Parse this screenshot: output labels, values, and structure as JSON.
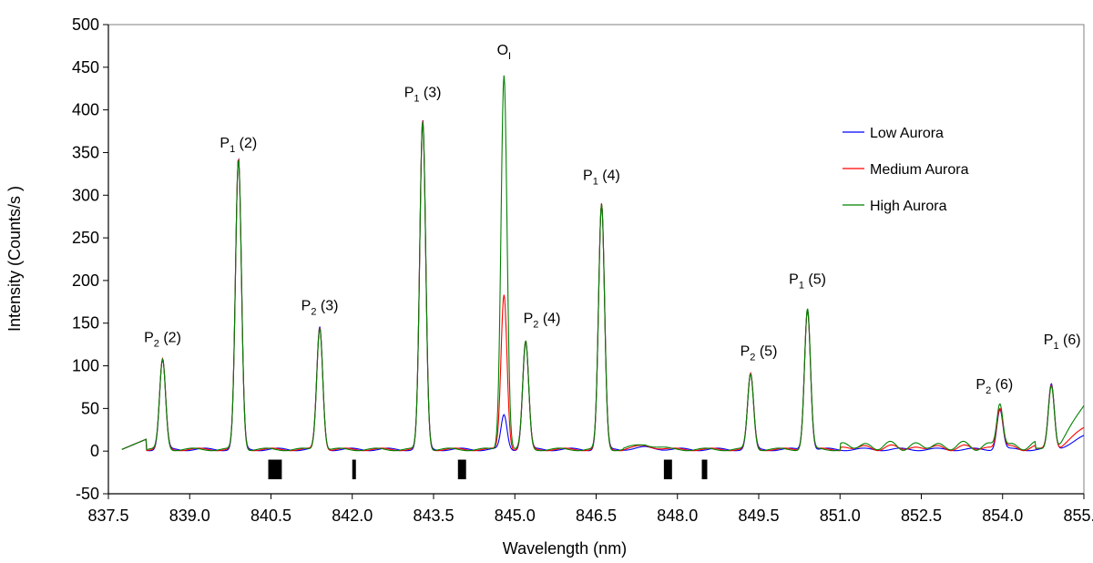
{
  "chart_data": {
    "type": "line",
    "xlabel": "Wavelength (nm)",
    "ylabel": "Intensity (Counts/s )",
    "xlim": [
      837.5,
      855.5
    ],
    "ylim": [
      -50,
      500
    ],
    "xticks": [
      837.5,
      839.0,
      840.5,
      842.0,
      843.5,
      845.0,
      846.5,
      848.0,
      849.5,
      851.0,
      852.5,
      854.0,
      855.5
    ],
    "xtick_labels": [
      "837.5",
      "839.0",
      "840.5",
      "842.0",
      "843.5",
      "845.0",
      "846.5",
      "848.0",
      "849.5",
      "851.0",
      "852.5",
      "854.0",
      "855.5"
    ],
    "yticks": [
      -50,
      0,
      50,
      100,
      150,
      200,
      250,
      300,
      350,
      400,
      450,
      500
    ],
    "ytick_labels": [
      "-50",
      "0",
      "50",
      "100",
      "150",
      "200",
      "250",
      "300",
      "350",
      "400",
      "450",
      "500"
    ],
    "grid": false,
    "legend_position": "right",
    "series": [
      {
        "name": "Low Aurora",
        "color": "#0000ff",
        "peaks": [
          [
            838.5,
            105
          ],
          [
            839.9,
            340
          ],
          [
            841.4,
            143
          ],
          [
            843.3,
            385
          ],
          [
            844.8,
            40
          ],
          [
            845.2,
            126
          ],
          [
            846.6,
            287
          ],
          [
            849.35,
            88
          ],
          [
            850.4,
            165
          ],
          [
            853.95,
            47
          ],
          [
            854.9,
            76
          ]
        ],
        "tail": 15
      },
      {
        "name": "Medium Aurora",
        "color": "#ff0000",
        "peaks": [
          [
            838.5,
            105
          ],
          [
            839.9,
            340
          ],
          [
            841.4,
            143
          ],
          [
            843.3,
            385
          ],
          [
            844.8,
            182
          ],
          [
            845.2,
            126
          ],
          [
            846.6,
            287
          ],
          [
            849.35,
            88
          ],
          [
            850.4,
            165
          ],
          [
            853.95,
            47
          ],
          [
            854.9,
            76
          ]
        ],
        "tail": 25
      },
      {
        "name": "High Aurora",
        "color": "#008000",
        "peaks": [
          [
            838.5,
            105
          ],
          [
            839.9,
            340
          ],
          [
            841.4,
            143
          ],
          [
            843.3,
            385
          ],
          [
            844.8,
            440
          ],
          [
            845.2,
            126
          ],
          [
            846.6,
            287
          ],
          [
            849.35,
            88
          ],
          [
            850.4,
            165
          ],
          [
            853.95,
            52
          ],
          [
            854.9,
            76
          ]
        ],
        "tail": 52
      }
    ],
    "annotations": [
      {
        "main": "P",
        "sub": "2",
        "suffix": " (2)",
        "x": 838.5,
        "y": 128
      },
      {
        "main": "P",
        "sub": "1",
        "suffix": " (2)",
        "x": 839.9,
        "y": 356
      },
      {
        "main": "P",
        "sub": "2",
        "suffix": " (3)",
        "x": 841.4,
        "y": 165
      },
      {
        "main": "P",
        "sub": "1",
        "suffix": " (3)",
        "x": 843.3,
        "y": 415
      },
      {
        "main": "O",
        "sub": "I",
        "suffix": "",
        "x": 844.8,
        "y": 465
      },
      {
        "main": "P",
        "sub": "2",
        "suffix": " (4)",
        "x": 845.5,
        "y": 150
      },
      {
        "main": "P",
        "sub": "1",
        "suffix": " (4)",
        "x": 846.6,
        "y": 318
      },
      {
        "main": "P",
        "sub": "2",
        "suffix": " (5)",
        "x": 849.5,
        "y": 112
      },
      {
        "main": "P",
        "sub": "1",
        "suffix": " (5)",
        "x": 850.4,
        "y": 196
      },
      {
        "main": "P",
        "sub": "2",
        "suffix": " (6)",
        "x": 853.85,
        "y": 73
      },
      {
        "main": "P",
        "sub": "1",
        "suffix": " (6)",
        "x": 855.1,
        "y": 125
      }
    ],
    "markers": [
      {
        "x0": 840.45,
        "x1": 840.7
      },
      {
        "x0": 842.0,
        "x1": 842.05
      },
      {
        "x0": 843.95,
        "x1": 844.1
      },
      {
        "x0": 847.75,
        "x1": 847.9
      },
      {
        "x0": 848.45,
        "x1": 848.55
      }
    ]
  }
}
